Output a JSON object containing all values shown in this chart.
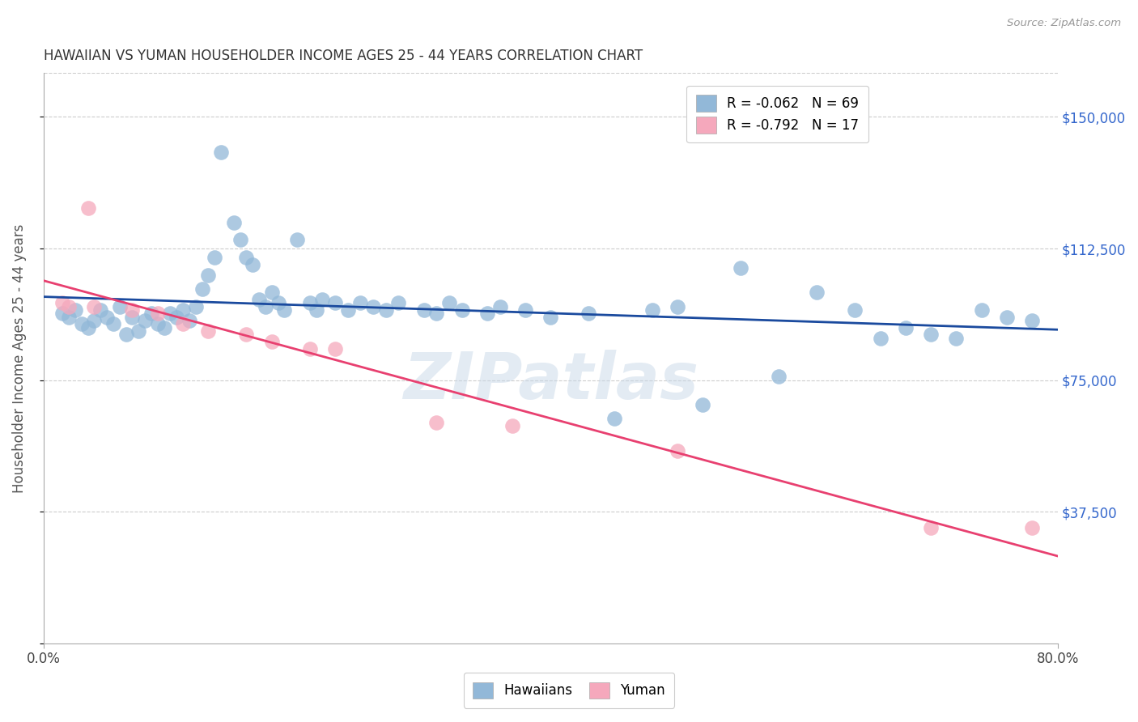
{
  "title": "HAWAIIAN VS YUMAN HOUSEHOLDER INCOME AGES 25 - 44 YEARS CORRELATION CHART",
  "source": "Source: ZipAtlas.com",
  "ylabel": "Householder Income Ages 25 - 44 years",
  "xlim": [
    0.0,
    0.8
  ],
  "ylim": [
    0,
    162500
  ],
  "yticks": [
    0,
    37500,
    75000,
    112500,
    150000
  ],
  "ytick_labels": [
    "",
    "$37,500",
    "$75,000",
    "$112,500",
    "$150,000"
  ],
  "legend_hawaiian": "R = -0.062   N = 69",
  "legend_yuman": "R = -0.792   N = 17",
  "hawaiian_color": "#92b8d8",
  "yuman_color": "#f5a8bc",
  "trend_hawaiian_color": "#1a4a9e",
  "trend_yuman_color": "#e84070",
  "background_color": "#ffffff",
  "watermark": "ZIPatlas",
  "hawaiian_x": [
    0.015,
    0.02,
    0.025,
    0.03,
    0.035,
    0.04,
    0.045,
    0.05,
    0.055,
    0.06,
    0.065,
    0.07,
    0.075,
    0.08,
    0.085,
    0.09,
    0.095,
    0.1,
    0.105,
    0.11,
    0.115,
    0.12,
    0.125,
    0.13,
    0.135,
    0.14,
    0.15,
    0.155,
    0.16,
    0.165,
    0.17,
    0.175,
    0.18,
    0.185,
    0.19,
    0.2,
    0.21,
    0.215,
    0.22,
    0.23,
    0.24,
    0.25,
    0.26,
    0.27,
    0.28,
    0.3,
    0.31,
    0.32,
    0.33,
    0.35,
    0.36,
    0.38,
    0.4,
    0.43,
    0.45,
    0.48,
    0.5,
    0.52,
    0.55,
    0.58,
    0.61,
    0.64,
    0.66,
    0.68,
    0.7,
    0.72,
    0.74,
    0.76,
    0.78
  ],
  "hawaiian_y": [
    94000,
    93000,
    95000,
    91000,
    90000,
    92000,
    95000,
    93000,
    91000,
    96000,
    88000,
    93000,
    89000,
    92000,
    94000,
    91000,
    90000,
    94000,
    93000,
    95000,
    92000,
    96000,
    101000,
    105000,
    110000,
    140000,
    120000,
    115000,
    110000,
    108000,
    98000,
    96000,
    100000,
    97000,
    95000,
    115000,
    97000,
    95000,
    98000,
    97000,
    95000,
    97000,
    96000,
    95000,
    97000,
    95000,
    94000,
    97000,
    95000,
    94000,
    96000,
    95000,
    93000,
    94000,
    64000,
    95000,
    96000,
    68000,
    107000,
    76000,
    100000,
    95000,
    87000,
    90000,
    88000,
    87000,
    95000,
    93000,
    92000
  ],
  "yuman_x": [
    0.015,
    0.02,
    0.035,
    0.04,
    0.07,
    0.09,
    0.11,
    0.13,
    0.16,
    0.18,
    0.21,
    0.23,
    0.31,
    0.37,
    0.5,
    0.7,
    0.78
  ],
  "yuman_y": [
    97000,
    96000,
    124000,
    96000,
    95000,
    94000,
    91000,
    89000,
    88000,
    86000,
    84000,
    84000,
    63000,
    62000,
    55000,
    33000,
    33000
  ]
}
